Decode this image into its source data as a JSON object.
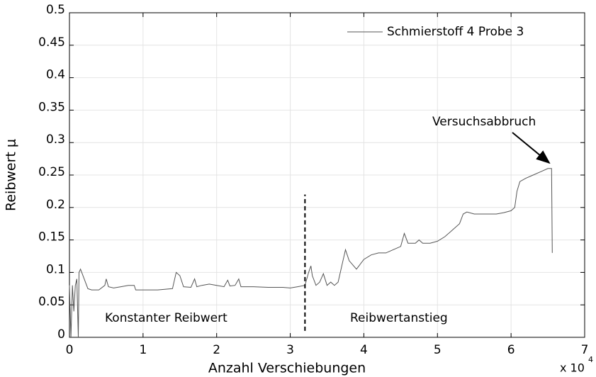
{
  "chart_data": {
    "type": "line",
    "xlabel": "Anzahl Verschiebungen",
    "ylabel": "Reibwert μ",
    "x_multiplier": "x 10",
    "x_multiplier_exponent": "4",
    "xlim": [
      0,
      7
    ],
    "xticks": [
      0,
      1,
      2,
      3,
      4,
      5,
      6,
      7
    ],
    "ylim": [
      0,
      0.5
    ],
    "yticks": [
      0,
      0.05,
      0.1,
      0.15,
      0.2,
      0.25,
      0.3,
      0.35,
      0.4,
      0.45,
      0.5
    ],
    "grid": true,
    "legend": "upper right",
    "series": [
      {
        "name": "Schmierstoff 4 Probe 3",
        "color": "#555555",
        "x": [
          0,
          0.02,
          0.04,
          0.06,
          0.08,
          0.1,
          0.12,
          0.13,
          0.15,
          0.2,
          0.25,
          0.3,
          0.4,
          0.48,
          0.5,
          0.53,
          0.6,
          0.7,
          0.8,
          0.88,
          0.9,
          1.0,
          1.2,
          1.4,
          1.45,
          1.5,
          1.55,
          1.65,
          1.7,
          1.73,
          1.8,
          1.9,
          2.0,
          2.1,
          2.15,
          2.18,
          2.25,
          2.3,
          2.33,
          2.5,
          2.7,
          2.9,
          3.0,
          3.1,
          3.2,
          3.25,
          3.28,
          3.3,
          3.35,
          3.4,
          3.45,
          3.5,
          3.55,
          3.6,
          3.65,
          3.7,
          3.75,
          3.8,
          3.9,
          4.0,
          4.1,
          4.2,
          4.3,
          4.4,
          4.5,
          4.55,
          4.6,
          4.7,
          4.75,
          4.8,
          4.9,
          5.0,
          5.1,
          5.2,
          5.3,
          5.35,
          5.4,
          5.5,
          5.6,
          5.7,
          5.8,
          5.9,
          6.0,
          6.05,
          6.08,
          6.12,
          6.2,
          6.3,
          6.4,
          6.5,
          6.55,
          6.56
        ],
        "values": [
          0.08,
          0.0,
          0.08,
          0.04,
          0.08,
          0.09,
          0.0,
          0.1,
          0.105,
          0.09,
          0.075,
          0.073,
          0.073,
          0.08,
          0.09,
          0.078,
          0.076,
          0.078,
          0.08,
          0.08,
          0.073,
          0.073,
          0.073,
          0.075,
          0.1,
          0.095,
          0.078,
          0.077,
          0.09,
          0.078,
          0.08,
          0.082,
          0.08,
          0.078,
          0.088,
          0.079,
          0.08,
          0.09,
          0.078,
          0.078,
          0.077,
          0.077,
          0.076,
          0.078,
          0.08,
          0.1,
          0.11,
          0.095,
          0.08,
          0.085,
          0.098,
          0.08,
          0.085,
          0.08,
          0.085,
          0.11,
          0.135,
          0.118,
          0.105,
          0.12,
          0.127,
          0.13,
          0.13,
          0.135,
          0.14,
          0.16,
          0.145,
          0.145,
          0.15,
          0.145,
          0.145,
          0.148,
          0.155,
          0.165,
          0.175,
          0.19,
          0.193,
          0.19,
          0.19,
          0.19,
          0.19,
          0.192,
          0.195,
          0.2,
          0.225,
          0.24,
          0.245,
          0.25,
          0.255,
          0.26,
          0.26,
          0.13
        ]
      }
    ],
    "divider": {
      "x": 3.2,
      "ymin": 0.01,
      "ymax": 0.22
    },
    "annotations": [
      {
        "text": "Konstanter Reibwert"
      },
      {
        "text": "Reibwertanstieg"
      },
      {
        "text": "Versuchsabbruch",
        "x": 6.5,
        "y": 0.26
      }
    ]
  }
}
